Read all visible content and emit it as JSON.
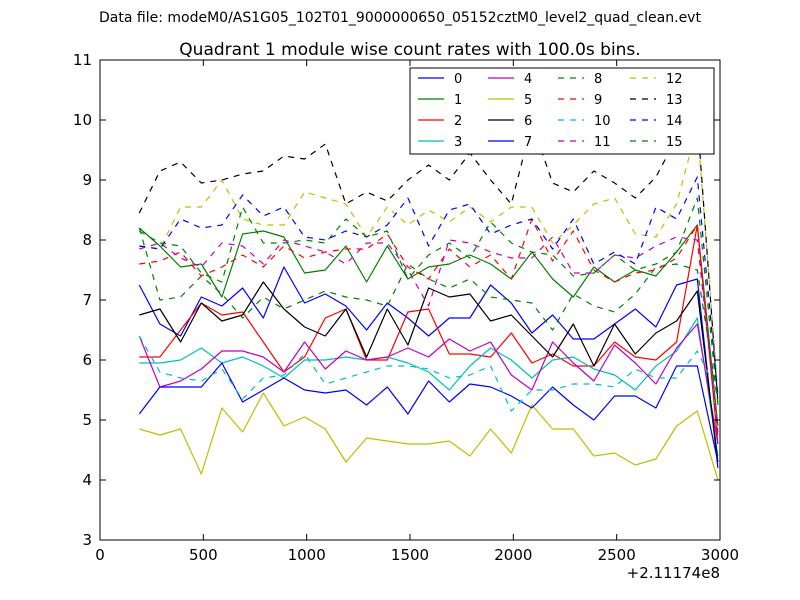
{
  "header_text": "Data file: modeM0/AS1G05_102T01_9000000650_05152cztM0_level2_quad_clean.evt",
  "chart_data": {
    "type": "line",
    "title": "Quadrant 1 module wise count rates with 100.0s bins.",
    "xlabel": "",
    "ylabel": "",
    "x_offset_label": "+2.11174e8",
    "xlim": [
      0,
      3000
    ],
    "ylim": [
      3,
      11
    ],
    "x_ticks": [
      0,
      500,
      1000,
      1500,
      2000,
      2500,
      3000
    ],
    "y_ticks": [
      3,
      4,
      5,
      6,
      7,
      8,
      9,
      10,
      11
    ],
    "grid": false,
    "legend": {
      "placement": "top-right",
      "columns": 4
    },
    "x": [
      190,
      290,
      390,
      490,
      590,
      690,
      790,
      890,
      990,
      1090,
      1190,
      1290,
      1390,
      1490,
      1590,
      1690,
      1790,
      1890,
      1990,
      2090,
      2190,
      2290,
      2390,
      2490,
      2590,
      2690,
      2790,
      2890,
      2990
    ],
    "series": [
      {
        "name": "0",
        "color": "#0000ff",
        "dash": "solid",
        "values": [
          7.25,
          6.6,
          6.4,
          7.05,
          6.9,
          7.2,
          6.7,
          7.55,
          6.95,
          7.1,
          6.9,
          6.5,
          6.95,
          6.7,
          6.4,
          6.7,
          6.7,
          7.25,
          6.95,
          6.45,
          6.75,
          6.35,
          6.35,
          6.6,
          6.85,
          6.55,
          7.25,
          7.35,
          4.2
        ]
      },
      {
        "name": "1",
        "color": "#008000",
        "dash": "solid",
        "values": [
          8.2,
          7.9,
          7.55,
          7.6,
          7.05,
          8.1,
          8.15,
          8.05,
          7.45,
          7.5,
          7.9,
          7.3,
          7.9,
          7.35,
          7.55,
          7.6,
          7.75,
          7.6,
          7.35,
          7.8,
          7.35,
          7.05,
          7.55,
          7.3,
          7.5,
          7.4,
          7.8,
          8.25,
          4.9
        ]
      },
      {
        "name": "2",
        "color": "#ff0000",
        "dash": "solid",
        "values": [
          6.05,
          6.05,
          6.5,
          6.95,
          6.75,
          6.8,
          6.3,
          5.8,
          6.05,
          6.7,
          6.85,
          6.0,
          6.0,
          6.8,
          6.85,
          6.1,
          6.1,
          6.05,
          6.45,
          5.95,
          6.1,
          5.9,
          5.9,
          6.3,
          6.05,
          6.0,
          6.3,
          8.25,
          4.6
        ]
      },
      {
        "name": "3",
        "color": "#00bfbf",
        "dash": "solid",
        "values": [
          5.95,
          5.95,
          6.0,
          6.2,
          5.95,
          6.05,
          5.9,
          5.7,
          6.0,
          6.0,
          6.05,
          6.0,
          6.05,
          5.95,
          5.8,
          5.5,
          5.9,
          6.2,
          6.0,
          5.7,
          6.0,
          6.05,
          5.85,
          5.75,
          5.5,
          5.9,
          6.15,
          6.7,
          4.4
        ]
      },
      {
        "name": "4",
        "color": "#bf00bf",
        "dash": "solid",
        "values": [
          6.4,
          5.55,
          5.65,
          5.85,
          6.15,
          6.15,
          6.05,
          5.8,
          6.3,
          5.85,
          6.15,
          6.0,
          6.05,
          6.2,
          6.05,
          6.35,
          6.15,
          6.3,
          5.75,
          5.5,
          6.3,
          5.95,
          5.65,
          6.25,
          5.95,
          5.6,
          6.2,
          6.6,
          4.6
        ]
      },
      {
        "name": "5",
        "color": "#bfbf00",
        "dash": "solid",
        "values": [
          4.85,
          4.75,
          4.85,
          4.1,
          5.2,
          4.8,
          5.45,
          4.9,
          5.05,
          4.85,
          4.3,
          4.7,
          4.65,
          4.6,
          4.6,
          4.65,
          4.4,
          4.85,
          4.45,
          5.25,
          4.85,
          4.85,
          4.4,
          4.45,
          4.25,
          4.35,
          4.9,
          5.15,
          4.0
        ]
      },
      {
        "name": "6",
        "color": "#000000",
        "dash": "solid",
        "values": [
          6.75,
          6.85,
          6.3,
          6.95,
          6.65,
          6.75,
          7.3,
          6.85,
          6.55,
          6.4,
          6.85,
          6.05,
          6.85,
          6.25,
          7.2,
          7.05,
          7.1,
          6.65,
          6.75,
          6.4,
          6.05,
          6.6,
          5.9,
          6.6,
          6.1,
          6.45,
          6.65,
          7.15,
          4.3
        ]
      },
      {
        "name": "7",
        "color": "#0000ff",
        "dash": "solid",
        "values": [
          5.1,
          5.55,
          5.55,
          5.55,
          5.95,
          5.3,
          5.5,
          5.7,
          5.5,
          5.45,
          5.5,
          5.25,
          5.55,
          5.1,
          5.65,
          5.3,
          5.6,
          5.55,
          5.4,
          5.2,
          5.55,
          5.25,
          5.0,
          5.4,
          5.4,
          5.2,
          5.9,
          5.9,
          4.3
        ]
      },
      {
        "name": "8",
        "color": "#008000",
        "dash": "dashed",
        "values": [
          8.2,
          7.0,
          7.05,
          7.4,
          7.1,
          6.7,
          7.05,
          6.85,
          7.0,
          7.15,
          7.05,
          7.0,
          6.9,
          7.6,
          7.35,
          7.2,
          7.35,
          7.05,
          7.0,
          6.95,
          6.5,
          7.1,
          6.9,
          6.8,
          7.1,
          7.55,
          7.6,
          7.5,
          5.3
        ]
      },
      {
        "name": "9",
        "color": "#ff0000",
        "dash": "dashed",
        "values": [
          7.6,
          7.65,
          7.8,
          7.4,
          7.55,
          7.75,
          7.55,
          7.9,
          7.7,
          7.8,
          7.85,
          7.85,
          8.1,
          7.55,
          7.35,
          7.85,
          7.55,
          7.75,
          7.35,
          8.35,
          7.65,
          8.15,
          7.5,
          7.3,
          7.45,
          7.5,
          7.7,
          8.25,
          4.7
        ]
      },
      {
        "name": "10",
        "color": "#00bfbf",
        "dash": "dashed",
        "values": [
          6.4,
          5.8,
          5.7,
          5.65,
          5.85,
          5.35,
          5.7,
          5.75,
          6.1,
          5.6,
          5.7,
          5.8,
          5.9,
          5.9,
          5.85,
          5.7,
          5.75,
          5.9,
          5.15,
          5.5,
          5.5,
          5.6,
          5.6,
          5.55,
          5.85,
          5.7,
          5.7,
          6.15,
          5.45
        ]
      },
      {
        "name": "11",
        "color": "#bf00bf",
        "dash": "dashed",
        "values": [
          7.85,
          7.95,
          7.7,
          7.55,
          7.95,
          7.9,
          7.6,
          8.0,
          7.9,
          7.8,
          7.6,
          7.95,
          7.95,
          7.5,
          6.9,
          8.0,
          7.95,
          7.8,
          7.7,
          7.7,
          8.05,
          7.45,
          7.45,
          7.75,
          7.7,
          7.9,
          8.05,
          8.0,
          4.8
        ]
      },
      {
        "name": "12",
        "color": "#bfbf00",
        "dash": "dashed",
        "values": [
          7.9,
          7.85,
          8.55,
          8.55,
          9.0,
          8.35,
          8.25,
          8.25,
          8.8,
          8.7,
          8.6,
          8.05,
          8.55,
          8.25,
          8.5,
          8.3,
          8.55,
          8.3,
          8.55,
          8.55,
          7.95,
          8.25,
          8.6,
          8.7,
          8.1,
          8.05,
          8.6,
          9.9,
          5.45
        ]
      },
      {
        "name": "13",
        "color": "#000000",
        "dash": "dashed",
        "values": [
          8.45,
          9.15,
          9.3,
          8.95,
          9.0,
          9.1,
          9.15,
          9.4,
          9.35,
          9.6,
          8.6,
          8.8,
          8.65,
          9.0,
          9.25,
          9.0,
          9.45,
          9.0,
          8.6,
          9.95,
          8.95,
          8.8,
          9.15,
          8.95,
          8.7,
          9.05,
          9.7,
          10.05,
          5.3
        ]
      },
      {
        "name": "14",
        "color": "#0000ff",
        "dash": "dashed",
        "values": [
          7.9,
          7.85,
          8.35,
          8.2,
          8.25,
          8.75,
          8.4,
          8.55,
          8.05,
          8.0,
          8.15,
          8.05,
          8.25,
          8.7,
          7.9,
          8.5,
          8.6,
          8.1,
          8.25,
          8.35,
          7.85,
          8.35,
          7.6,
          7.8,
          7.6,
          8.55,
          8.35,
          9.05,
          5.4
        ]
      },
      {
        "name": "15",
        "color": "#008000",
        "dash": "dashed",
        "values": [
          8.15,
          7.95,
          7.9,
          7.45,
          7.3,
          8.55,
          7.95,
          7.95,
          8.0,
          7.95,
          8.35,
          8.05,
          8.15,
          7.35,
          7.75,
          7.95,
          7.7,
          8.3,
          7.95,
          7.8,
          7.75,
          7.4,
          7.45,
          7.75,
          7.5,
          7.6,
          7.8,
          8.7,
          5.25
        ]
      }
    ]
  }
}
